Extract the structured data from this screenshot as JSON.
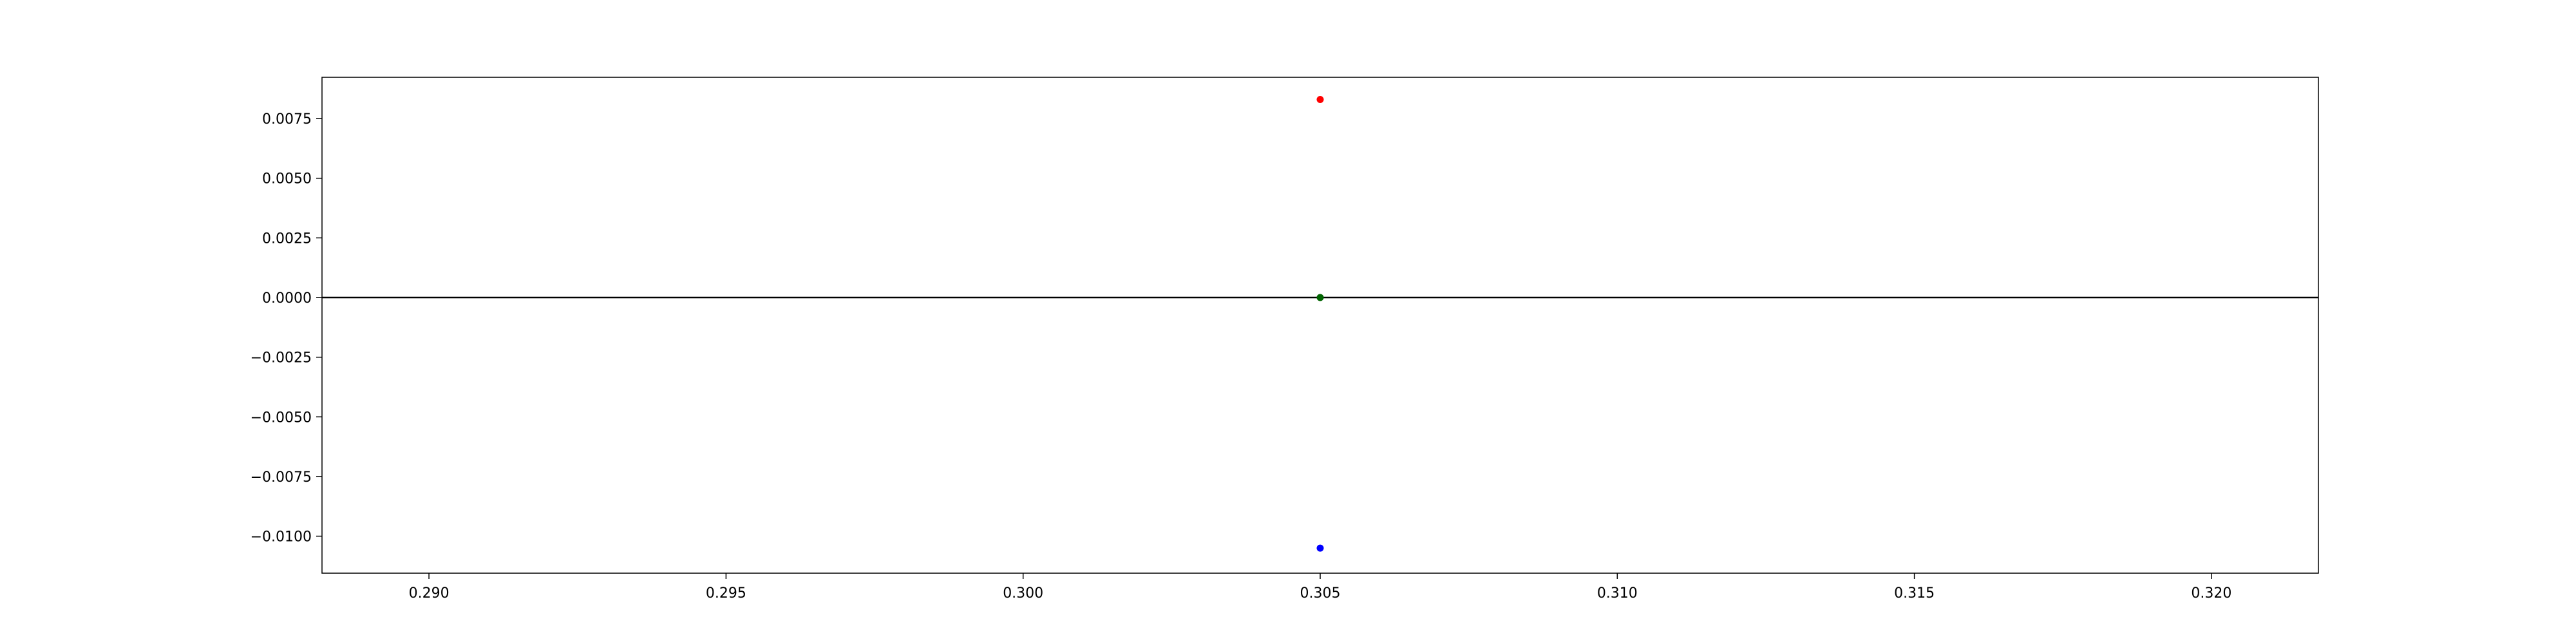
{
  "chart_data": {
    "type": "scatter",
    "title": "",
    "xlabel": "",
    "ylabel": "",
    "xlim": [
      0.2882,
      0.3218
    ],
    "ylim": [
      -0.01155,
      0.00923
    ],
    "x_ticks": [
      "0.290",
      "0.295",
      "0.300",
      "0.305",
      "0.310",
      "0.315",
      "0.320"
    ],
    "x_tick_values": [
      0.29,
      0.295,
      0.3,
      0.305,
      0.31,
      0.315,
      0.32
    ],
    "y_ticks": [
      "0.0075",
      "0.0050",
      "0.0025",
      "0.0000",
      "−0.0025",
      "−0.0050",
      "−0.0075",
      "−0.0100"
    ],
    "y_tick_values": [
      0.0075,
      0.005,
      0.0025,
      0.0,
      -0.0025,
      -0.005,
      -0.0075,
      -0.01
    ],
    "grid": false,
    "reference_line": {
      "y": 0.0,
      "color": "#000000"
    },
    "points": [
      {
        "x": 0.305,
        "y": 0.0083,
        "color": "#ff0000"
      },
      {
        "x": 0.305,
        "y": 0.0,
        "color": "#006400"
      },
      {
        "x": 0.305,
        "y": -0.0105,
        "color": "#0000ff"
      }
    ]
  }
}
